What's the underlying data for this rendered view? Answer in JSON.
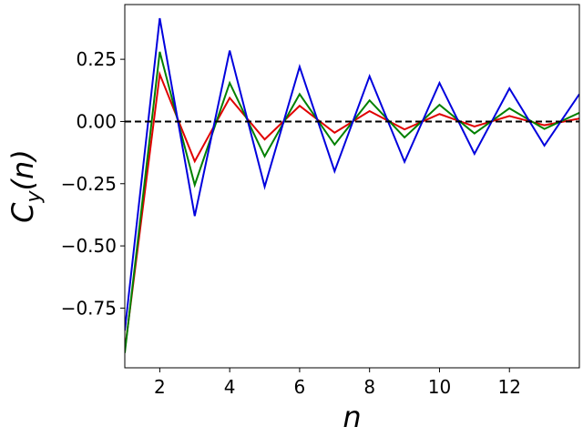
{
  "chart_data": {
    "type": "line",
    "title": "",
    "xlabel": "n",
    "ylabel": "C_y(n)",
    "xlim": [
      1,
      14
    ],
    "ylim": [
      -0.99,
      0.47
    ],
    "grid": false,
    "legend": "none",
    "x_ticks": [
      2,
      4,
      6,
      8,
      10,
      12
    ],
    "y_ticks": [
      -0.75,
      -0.5,
      -0.25,
      0.0,
      0.25
    ],
    "x_tick_labels": [
      "2",
      "4",
      "6",
      "8",
      "10",
      "12"
    ],
    "y_tick_labels": [
      "−0.75",
      "−0.50",
      "−0.25",
      "0.00",
      "0.25"
    ],
    "reference_line": {
      "y": 0.0,
      "style": "dashed",
      "color": "#000000"
    },
    "x": [
      1,
      2,
      3,
      4,
      5,
      6,
      7,
      8,
      9,
      10,
      11,
      12,
      13,
      14
    ],
    "series": [
      {
        "color": "#e00000",
        "values": [
          -0.92,
          0.19,
          -0.16,
          0.095,
          -0.072,
          0.063,
          -0.045,
          0.042,
          -0.032,
          0.03,
          -0.02,
          0.022,
          -0.015,
          0.012
        ]
      },
      {
        "color": "#008000",
        "values": [
          -0.93,
          0.28,
          -0.255,
          0.155,
          -0.14,
          0.11,
          -0.093,
          0.085,
          -0.064,
          0.067,
          -0.048,
          0.053,
          -0.03,
          0.035
        ]
      },
      {
        "color": "#0000dd",
        "values": [
          -0.84,
          0.415,
          -0.38,
          0.285,
          -0.262,
          0.22,
          -0.2,
          0.182,
          -0.162,
          0.155,
          -0.13,
          0.133,
          -0.097,
          0.11
        ]
      }
    ]
  }
}
